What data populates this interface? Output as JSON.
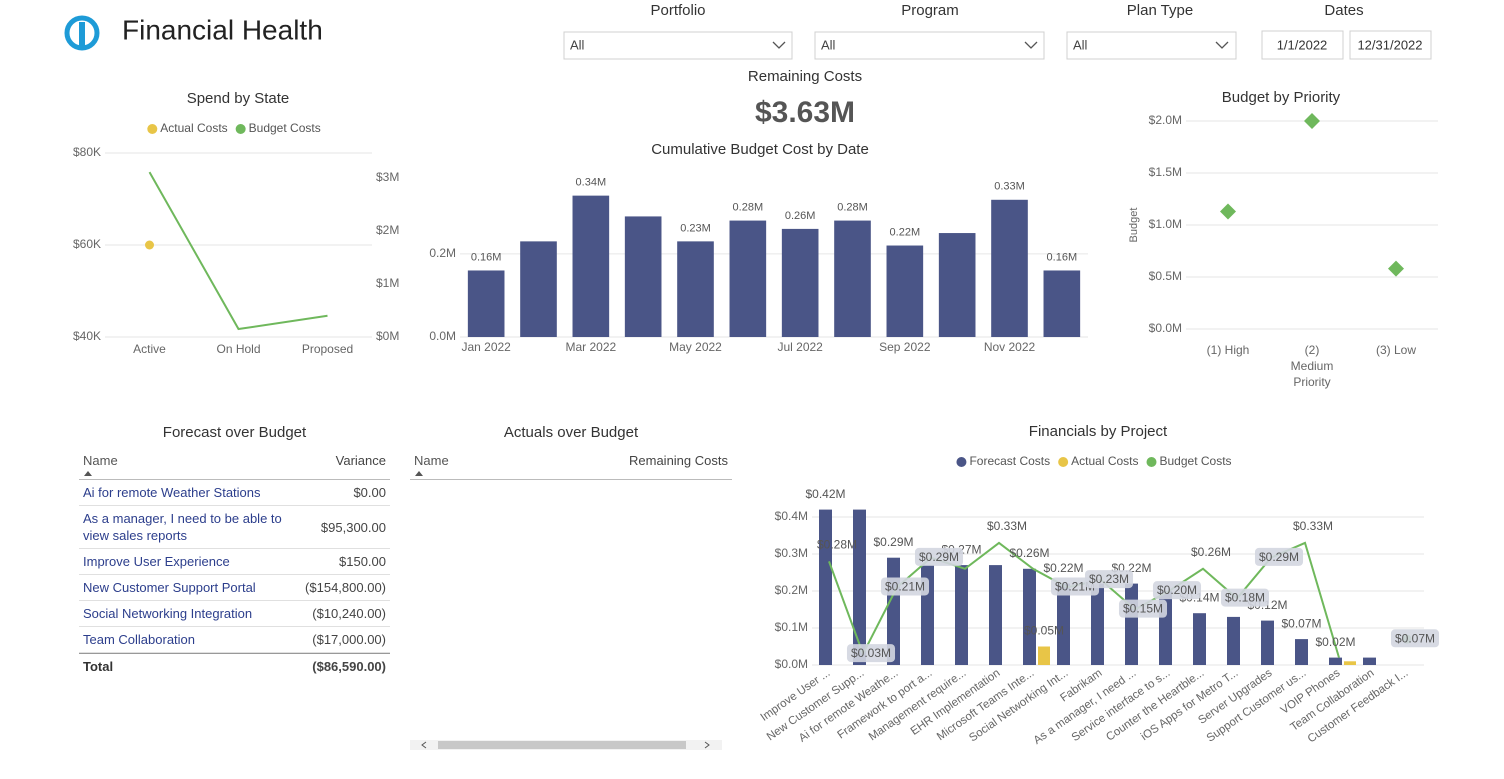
{
  "header": {
    "title": "Financial Health"
  },
  "filters": [
    {
      "label": "Portfolio",
      "value": "All"
    },
    {
      "label": "Program",
      "value": "All"
    },
    {
      "label": "Plan Type",
      "value": "All"
    }
  ],
  "dates": {
    "label": "Dates",
    "start": "1/1/2022",
    "end": "12/31/2022"
  },
  "kpi": {
    "label": "Remaining Costs",
    "value": "$3.63M"
  },
  "chart_data": [
    {
      "type": "line",
      "title": "Spend by State",
      "categories": [
        "Active",
        "On Hold",
        "Proposed"
      ],
      "series": [
        {
          "name": "Actual Costs",
          "color": "#e8c547",
          "values": [
            60000,
            null,
            null
          ]
        },
        {
          "name": "Budget Costs",
          "color": "#6fb85c",
          "axis": "y2",
          "values": [
            3110000,
            150000,
            400000
          ]
        }
      ],
      "ylim": [
        40000,
        80000
      ],
      "yticks": [
        {
          "value": 40000,
          "label": "$40K"
        },
        {
          "value": 60000,
          "label": "$60K"
        },
        {
          "value": 80000,
          "label": "$80K"
        }
      ],
      "y2lim": [
        0,
        3470000
      ],
      "y2ticks": [
        {
          "value": 0,
          "label": "$0M"
        },
        {
          "value": 1000000,
          "label": "$1M"
        },
        {
          "value": 2000000,
          "label": "$2M"
        },
        {
          "value": 3000000,
          "label": "$3M"
        }
      ],
      "grid": true,
      "legend": "top"
    },
    {
      "type": "bar",
      "title": "Cumulative Budget Cost by Date",
      "categories": [
        "Jan 2022",
        null,
        "Mar 2022",
        null,
        "May 2022",
        null,
        "Jul 2022",
        null,
        "Sep 2022",
        null,
        "Nov 2022",
        null
      ],
      "values": [
        160000,
        230000,
        340000,
        290000,
        230000,
        280000,
        260000,
        280000,
        220000,
        250000,
        330000,
        160000
      ],
      "value_labels": [
        "0.16M",
        null,
        "0.34M",
        null,
        "0.23M",
        "0.28M",
        "0.26M",
        "0.28M",
        "0.22M",
        null,
        "0.33M",
        "0.16M"
      ],
      "color": "#4a5587",
      "ylim": [
        0,
        380000
      ],
      "yticks": [
        {
          "value": 0,
          "label": "0.0M"
        },
        {
          "value": 200000,
          "label": "0.2M"
        }
      ],
      "grid": true
    },
    {
      "type": "scatter",
      "title": "Budget by Priority",
      "ylabel": "Budget",
      "categories": [
        "(1) High",
        "(2) Medium Priority",
        "(3) Low"
      ],
      "values": [
        1130000,
        2000000,
        580000
      ],
      "color": "#6fb85c",
      "ylim": [
        0,
        2000000
      ],
      "yticks": [
        {
          "value": 0,
          "label": "$0.0M"
        },
        {
          "value": 500000,
          "label": "$0.5M"
        },
        {
          "value": 1000000,
          "label": "$1.0M"
        },
        {
          "value": 1500000,
          "label": "$1.5M"
        },
        {
          "value": 2000000,
          "label": "$2.0M"
        }
      ],
      "grid": true
    },
    {
      "type": "combo",
      "title": "Financials by Project",
      "categories": [
        "Improve User ...",
        "New Customer Supp...",
        "Ai for remote Weathe...",
        "Framework to port a...",
        "Management require...",
        "EHR Implementation",
        "Microsoft Teams Inte...",
        "Social Networking Int...",
        "Fabrikam",
        "As a manager, I need ...",
        "Service interface to s...",
        "Counter the Heartble...",
        "iOS Apps for Metro T...",
        "Server Upgrades",
        "Support Customer us...",
        "VOIP Phones",
        "Team Collaboration",
        "Customer Feedback I..."
      ],
      "series": [
        {
          "name": "Forecast Costs",
          "type": "bar",
          "color": "#4a5587",
          "values": [
            420000,
            420000,
            290000,
            270000,
            270000,
            270000,
            260000,
            220000,
            220000,
            220000,
            200000,
            140000,
            130000,
            120000,
            70000,
            20000,
            20000,
            null
          ],
          "value_labels": [
            "$0.42M",
            null,
            "$0.29M",
            null,
            "$0.27M",
            null,
            "$0.26M",
            "$0.22M",
            null,
            "$0.22M",
            null,
            "$0.14M",
            null,
            "$0.12M",
            "$0.07M",
            "$0.02M",
            null,
            null
          ]
        },
        {
          "name": "Actual Costs",
          "type": "bar",
          "color": "#e8c547",
          "values": [
            null,
            null,
            null,
            null,
            null,
            null,
            50000,
            null,
            null,
            null,
            null,
            null,
            null,
            null,
            null,
            10000,
            null,
            null
          ],
          "value_labels": [
            null,
            null,
            null,
            null,
            null,
            null,
            "$0.05M",
            null,
            null,
            null,
            null,
            null,
            null,
            null,
            null,
            null,
            null,
            null
          ]
        },
        {
          "name": "Budget Costs",
          "type": "line",
          "color": "#6fb85c",
          "values": [
            280000,
            30000,
            210000,
            290000,
            260000,
            330000,
            260000,
            210000,
            230000,
            150000,
            200000,
            260000,
            180000,
            290000,
            330000,
            20000,
            null,
            70000
          ],
          "value_labels": [
            "$0.28M",
            "$0.03M",
            "$0.21M",
            "$0.29M",
            null,
            "$0.33M",
            null,
            "$0.21M",
            "$0.23M",
            "$0.15M",
            "$0.20M",
            "$0.26M",
            "$0.18M",
            "$0.29M",
            "$0.33M",
            null,
            null,
            "$0.07M"
          ]
        }
      ],
      "ylim": [
        0,
        450000
      ],
      "yticks": [
        {
          "value": 0,
          "label": "$0.0M"
        },
        {
          "value": 100000,
          "label": "$0.1M"
        },
        {
          "value": 200000,
          "label": "$0.2M"
        },
        {
          "value": 300000,
          "label": "$0.3M"
        },
        {
          "value": 400000,
          "label": "$0.4M"
        }
      ],
      "grid": true,
      "legend": "top"
    }
  ],
  "tables": [
    {
      "title": "Forecast over Budget",
      "columns": [
        "Name",
        "Variance"
      ],
      "rows": [
        [
          "Ai for remote Weather Stations",
          "$0.00"
        ],
        [
          "As a manager, I need to be able to view sales reports",
          "$95,300.00"
        ],
        [
          "Improve User Experience",
          "$150.00"
        ],
        [
          "New Customer Support Portal",
          "($154,800.00)"
        ],
        [
          "Social Networking Integration",
          "($10,240.00)"
        ],
        [
          "Team Collaboration",
          "($17,000.00)"
        ]
      ],
      "total": [
        "Total",
        "($86,590.00)"
      ]
    },
    {
      "title": "Actuals over Budget",
      "columns": [
        "Name",
        "Remaining Costs"
      ],
      "rows": []
    }
  ]
}
